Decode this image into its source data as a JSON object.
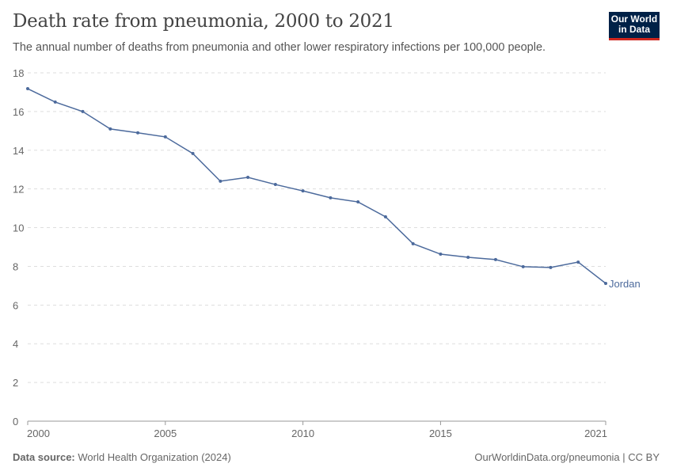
{
  "header": {
    "title": "Death rate from pneumonia, 2000 to 2021",
    "subtitle": "The annual number of deaths from pneumonia and other lower respiratory infections per 100,000 people.",
    "logo_line1": "Our World",
    "logo_line2": "in Data"
  },
  "footer": {
    "source_label": "Data source:",
    "source": "World Health Organization (2024)",
    "link": "OurWorldinData.org/pneumonia | CC BY"
  },
  "chart_data": {
    "type": "line",
    "title": "Death rate from pneumonia, 2000 to 2021",
    "ylim": [
      0,
      18
    ],
    "yticks": [
      0,
      2,
      4,
      6,
      8,
      10,
      12,
      14,
      16,
      18
    ],
    "xticks": [
      2000,
      2005,
      2010,
      2015,
      2021
    ],
    "xlim": [
      2000,
      2021
    ],
    "grid": "horizontal dashed",
    "color": "#4c6a9c",
    "x": [
      2000,
      2001,
      2002,
      2003,
      2004,
      2005,
      2006,
      2007,
      2008,
      2009,
      2010,
      2011,
      2012,
      2013,
      2014,
      2015,
      2016,
      2017,
      2018,
      2019,
      2020,
      2021
    ],
    "series": [
      {
        "name": "Jordan",
        "values": [
          17.18,
          16.49,
          16.0,
          15.1,
          14.9,
          14.69,
          13.83,
          12.4,
          12.6,
          12.23,
          11.9,
          11.54,
          11.33,
          10.56,
          9.17,
          8.63,
          8.47,
          8.35,
          7.98,
          7.94,
          8.22,
          7.12
        ]
      }
    ]
  }
}
